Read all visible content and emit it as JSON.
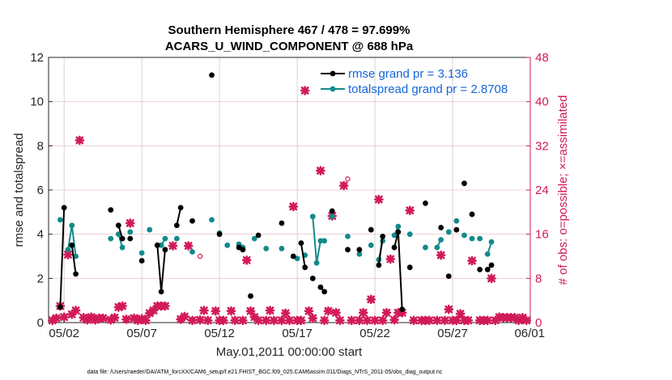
{
  "chart_data": {
    "type": "line",
    "title": "Southern Hemisphere 467 / 478 = 97.699%",
    "subtitle": "ACARS_U_WIND_COMPONENT @ 688 hPa",
    "xlabel": "May.01,2011 00:00:00 start",
    "ylabel_left": "rmse and totalspread",
    "ylabel_right": "# of obs: o=possible; ×=assimilated",
    "footnote": "data file: /Users/raeder/DAI/ATM_forcXX/CAM6_setup/f.e21.FHIST_BGC.f09_025.CAM6assim.011/Diags_NTrS_2011-05/obs_diag_output.nc",
    "xlim": [
      1,
      32
    ],
    "ylim_left": [
      0,
      12
    ],
    "ylim_right": [
      0,
      48
    ],
    "x_ticks": [
      {
        "x": 2,
        "label": "05/02"
      },
      {
        "x": 7,
        "label": "05/07"
      },
      {
        "x": 12,
        "label": "05/12"
      },
      {
        "x": 17,
        "label": "05/17"
      },
      {
        "x": 22,
        "label": "05/22"
      },
      {
        "x": 27,
        "label": "05/27"
      },
      {
        "x": 32,
        "label": "06/01"
      }
    ],
    "y_ticks_left": [
      "0",
      "2",
      "4",
      "6",
      "8",
      "10",
      "12"
    ],
    "y_ticks_right": [
      "0",
      "8",
      "16",
      "24",
      "32",
      "40",
      "48"
    ],
    "colors": {
      "rmse": "#000000",
      "spread": "#138a8a",
      "obs": "#d11a5a",
      "grid_x": "#d9c3c9",
      "grid_y": "#e8c8d3",
      "legend_text": "#1565d8"
    },
    "legend": [
      {
        "name": "rmse grand pr = 3.136",
        "color": "#000000"
      },
      {
        "name": "totalspread grand pr = 2.8708",
        "color": "#138a8a"
      }
    ],
    "series": [
      {
        "name": "rmse",
        "values": [
          [
            1.75,
            0.7
          ],
          [
            2.0,
            5.2
          ],
          [
            2.5,
            3.5
          ],
          [
            2.75,
            2.2
          ],
          [
            5.0,
            5.1
          ],
          [
            5.5,
            4.4
          ],
          [
            5.75,
            3.8
          ],
          [
            6.25,
            3.8
          ],
          [
            7.0,
            2.8
          ],
          [
            8.0,
            3.5
          ],
          [
            8.25,
            1.4
          ],
          [
            8.5,
            3.3
          ],
          [
            9.25,
            4.4
          ],
          [
            9.5,
            5.2
          ],
          [
            10.25,
            4.6
          ],
          [
            11.5,
            11.2
          ],
          [
            12.0,
            4.0
          ],
          [
            13.25,
            3.4
          ],
          [
            13.5,
            3.3
          ],
          [
            14.0,
            1.2
          ],
          [
            14.5,
            3.95
          ],
          [
            16.0,
            4.5
          ],
          [
            16.75,
            3.0
          ],
          [
            17.25,
            3.6
          ],
          [
            17.5,
            2.5
          ],
          [
            18.0,
            2.0
          ],
          [
            18.5,
            1.6
          ],
          [
            18.75,
            1.4
          ],
          [
            19.25,
            5.05
          ],
          [
            20.25,
            3.3
          ],
          [
            21.0,
            3.3
          ],
          [
            21.75,
            4.2
          ],
          [
            22.25,
            2.6
          ],
          [
            22.5,
            3.9
          ],
          [
            23.25,
            3.4
          ],
          [
            23.5,
            4.1
          ],
          [
            23.75,
            0.6
          ],
          [
            24.25,
            2.5
          ],
          [
            25.25,
            5.4
          ],
          [
            26.25,
            4.3
          ],
          [
            26.75,
            2.1
          ],
          [
            27.25,
            4.2
          ],
          [
            27.75,
            6.3
          ],
          [
            28.25,
            4.9
          ],
          [
            28.75,
            2.4
          ],
          [
            29.25,
            2.4
          ],
          [
            29.5,
            2.6
          ]
        ]
      },
      {
        "name": "totalspread",
        "values": [
          [
            1.75,
            4.65
          ],
          [
            2.25,
            3.3
          ],
          [
            2.5,
            4.4
          ],
          [
            2.75,
            3.0
          ],
          [
            5.0,
            3.8
          ],
          [
            5.5,
            4.0
          ],
          [
            5.75,
            3.4
          ],
          [
            6.25,
            4.1
          ],
          [
            7.0,
            3.15
          ],
          [
            7.5,
            4.2
          ],
          [
            8.0,
            3.5
          ],
          [
            8.25,
            3.5
          ],
          [
            8.5,
            3.8
          ],
          [
            9.25,
            3.8
          ],
          [
            10.25,
            3.2
          ],
          [
            11.5,
            4.65
          ],
          [
            12.0,
            4.05
          ],
          [
            12.5,
            3.5
          ],
          [
            13.25,
            3.55
          ],
          [
            13.5,
            3.4
          ],
          [
            14.25,
            3.8
          ],
          [
            15.0,
            3.35
          ],
          [
            16.0,
            3.35
          ],
          [
            17.0,
            2.9
          ],
          [
            17.5,
            3.05
          ],
          [
            18.0,
            4.8
          ],
          [
            18.25,
            2.7
          ],
          [
            18.5,
            3.7
          ],
          [
            18.75,
            3.7
          ],
          [
            19.25,
            4.8
          ],
          [
            20.25,
            3.9
          ],
          [
            21.0,
            3.1
          ],
          [
            21.75,
            3.5
          ],
          [
            22.25,
            2.85
          ],
          [
            22.5,
            3.7
          ],
          [
            23.25,
            3.95
          ],
          [
            23.5,
            4.35
          ],
          [
            24.25,
            4.0
          ],
          [
            25.25,
            3.4
          ],
          [
            26.0,
            3.4
          ],
          [
            26.25,
            3.75
          ],
          [
            26.75,
            4.1
          ],
          [
            27.25,
            4.6
          ],
          [
            27.75,
            3.95
          ],
          [
            28.25,
            3.8
          ],
          [
            28.75,
            3.8
          ],
          [
            29.25,
            3.1
          ],
          [
            29.5,
            3.65
          ]
        ]
      }
    ],
    "obs_possible": [
      [
        10.75,
        12.0
      ],
      [
        20.25,
        26.0
      ],
      [
        20.0,
        25.0
      ]
    ],
    "obs_assimilated": [
      [
        1.25,
        0.4
      ],
      [
        1.5,
        0.8
      ],
      [
        1.75,
        3.0
      ],
      [
        2.0,
        1.0
      ],
      [
        2.25,
        12.3
      ],
      [
        2.5,
        1.5
      ],
      [
        2.75,
        2.2
      ],
      [
        3.0,
        33.0
      ],
      [
        3.25,
        0.9
      ],
      [
        3.5,
        0.5
      ],
      [
        3.75,
        1.0
      ],
      [
        4.0,
        0.5
      ],
      [
        4.25,
        0.8
      ],
      [
        4.5,
        0.8
      ],
      [
        5.0,
        0.5
      ],
      [
        5.25,
        0.9
      ],
      [
        5.5,
        2.8
      ],
      [
        5.75,
        3.0
      ],
      [
        6.0,
        0.6
      ],
      [
        6.25,
        18.0
      ],
      [
        6.5,
        0.8
      ],
      [
        6.75,
        0.4
      ],
      [
        7.0,
        0.7
      ],
      [
        7.25,
        0.4
      ],
      [
        7.5,
        1.7
      ],
      [
        7.75,
        2.2
      ],
      [
        8.0,
        3.0
      ],
      [
        8.25,
        3.0
      ],
      [
        8.5,
        3.0
      ],
      [
        9.0,
        13.9
      ],
      [
        9.5,
        0.6
      ],
      [
        9.75,
        1.1
      ],
      [
        10.0,
        13.9
      ],
      [
        10.25,
        0.4
      ],
      [
        10.75,
        0.5
      ],
      [
        11.0,
        2.2
      ],
      [
        11.25,
        0.4
      ],
      [
        11.75,
        2.1
      ],
      [
        12.0,
        0.4
      ],
      [
        12.25,
        0.4
      ],
      [
        12.75,
        2.1
      ],
      [
        13.0,
        0.4
      ],
      [
        13.5,
        0.4
      ],
      [
        13.75,
        11.3
      ],
      [
        14.0,
        2.1
      ],
      [
        14.25,
        1.0
      ],
      [
        14.5,
        0.4
      ],
      [
        15.0,
        0.4
      ],
      [
        15.25,
        2.2
      ],
      [
        15.5,
        0.4
      ],
      [
        16.0,
        0.4
      ],
      [
        16.25,
        1.7
      ],
      [
        16.5,
        0.4
      ],
      [
        16.75,
        21.0
      ],
      [
        17.0,
        0.4
      ],
      [
        17.25,
        0.4
      ],
      [
        17.5,
        42.0
      ],
      [
        17.75,
        2.1
      ],
      [
        18.0,
        0.8
      ],
      [
        18.5,
        27.5
      ],
      [
        18.75,
        0.4
      ],
      [
        19.0,
        2.1
      ],
      [
        19.25,
        19.3
      ],
      [
        19.5,
        1.8
      ],
      [
        19.75,
        0.4
      ],
      [
        20.0,
        24.8
      ],
      [
        20.5,
        0.4
      ],
      [
        21.0,
        0.4
      ],
      [
        21.25,
        1.8
      ],
      [
        21.5,
        0.4
      ],
      [
        21.75,
        4.2
      ],
      [
        22.0,
        0.4
      ],
      [
        22.25,
        22.3
      ],
      [
        22.5,
        0.4
      ],
      [
        22.75,
        1.8
      ],
      [
        23.0,
        11.5
      ],
      [
        23.25,
        0.5
      ],
      [
        23.5,
        1.8
      ],
      [
        23.75,
        1.8
      ],
      [
        24.25,
        20.3
      ],
      [
        24.5,
        0.4
      ],
      [
        25.0,
        0.4
      ],
      [
        25.25,
        0.4
      ],
      [
        25.5,
        0.4
      ],
      [
        26.0,
        0.4
      ],
      [
        26.25,
        12.2
      ],
      [
        26.5,
        0.4
      ],
      [
        26.75,
        2.4
      ],
      [
        27.0,
        0.4
      ],
      [
        27.25,
        0.4
      ],
      [
        27.5,
        1.6
      ],
      [
        27.75,
        0.4
      ],
      [
        28.0,
        0.4
      ],
      [
        28.25,
        11.2
      ],
      [
        28.75,
        0.4
      ],
      [
        29.0,
        0.4
      ],
      [
        29.25,
        0.4
      ],
      [
        29.5,
        8.0
      ],
      [
        29.75,
        0.4
      ],
      [
        30.0,
        1.0
      ],
      [
        30.25,
        0.9
      ],
      [
        30.5,
        0.9
      ],
      [
        30.75,
        0.9
      ],
      [
        31.0,
        0.9
      ],
      [
        31.25,
        0.4
      ],
      [
        31.5,
        0.9
      ],
      [
        31.75,
        0.4
      ]
    ]
  }
}
